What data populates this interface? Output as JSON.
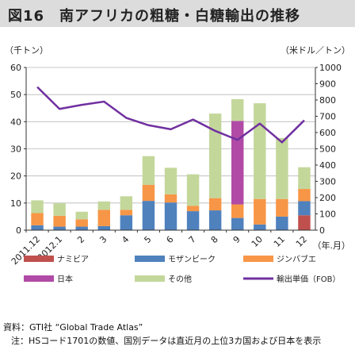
{
  "title": "図16　南アフリカの粗糖・白糖輸出の推移",
  "source": "資料：GTI社 “Global Trade Atlas”",
  "note": "注：HSコード1701の数値、国別データは直近月の上位3カ国および日本を表示",
  "chart_data": {
    "type": "bar",
    "stacked": true,
    "categories": [
      "2011.12",
      "2012.1",
      "2",
      "3",
      "4",
      "5",
      "6",
      "7",
      "8",
      "9",
      "10",
      "11",
      "12"
    ],
    "y_left_label": "（千トン）",
    "y_right_label": "（米ドル／トン）",
    "x_unit_label": "（年.月）",
    "ylim_left": [
      0,
      60
    ],
    "yticks_left": [
      0,
      10,
      20,
      30,
      40,
      50,
      60
    ],
    "ylim_right": [
      0,
      1000
    ],
    "yticks_right": [
      0,
      100,
      200,
      300,
      400,
      500,
      600,
      700,
      800,
      900,
      1000
    ],
    "grid": true,
    "legend_position": "bottom",
    "series": [
      {
        "name": "ナミビア",
        "color": "#c0504d",
        "axis": "left",
        "values": [
          0,
          0,
          0,
          0,
          0,
          0,
          0,
          0,
          0,
          0,
          0,
          0,
          5.5
        ]
      },
      {
        "name": "モザンビーク",
        "color": "#4f81bd",
        "axis": "left",
        "values": [
          1.8,
          1.3,
          1.3,
          1.5,
          5.5,
          10.8,
          10.2,
          7.0,
          7.3,
          4.5,
          2.1,
          5.0,
          5.2
        ]
      },
      {
        "name": "ジンバブエ",
        "color": "#f79646",
        "axis": "left",
        "values": [
          4.5,
          4.0,
          2.7,
          6.0,
          2.0,
          5.9,
          3.0,
          2.0,
          4.5,
          5.0,
          9.4,
          6.5,
          4.5
        ]
      },
      {
        "name": "日本",
        "color": "#b04aa6",
        "axis": "left",
        "values": [
          0,
          0,
          0,
          0,
          0,
          0,
          0,
          0,
          0,
          30.8,
          0,
          0,
          0
        ]
      },
      {
        "name": "その他",
        "color": "#c4d79b",
        "axis": "left",
        "values": [
          4.7,
          4.6,
          2.8,
          3.1,
          5.0,
          10.6,
          9.8,
          11.6,
          31.2,
          8.0,
          35.3,
          22.5,
          8.0
        ]
      }
    ],
    "line": {
      "name": "輸出単価（FOB）",
      "color": "#7030a0",
      "axis": "right",
      "values": [
        880,
        745,
        770,
        790,
        690,
        645,
        620,
        680,
        610,
        555,
        655,
        540,
        675
      ]
    }
  }
}
